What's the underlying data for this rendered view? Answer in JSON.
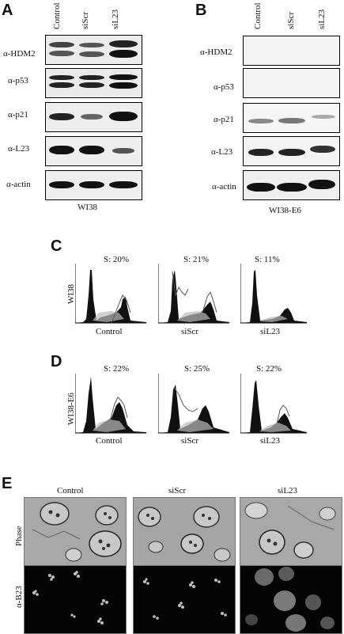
{
  "panel_a": {
    "letter": "A",
    "lanes": [
      "Control",
      "siScr",
      "siL23"
    ],
    "antibodies": [
      "α-HDM2",
      "α-p53",
      "α-p21",
      "α-L23",
      "α-actin"
    ],
    "cell_line": "WI38"
  },
  "panel_b": {
    "letter": "B",
    "lanes": [
      "Control",
      "siScr",
      "siL23"
    ],
    "antibodies": [
      "α-HDM2",
      "α-p53",
      "α-p21",
      "α-L23",
      "α-actin"
    ],
    "cell_line": "WI38-E6"
  },
  "panel_c": {
    "letter": "C",
    "row_label": "WI38",
    "s_phase": [
      "S: 20%",
      "S: 21%",
      "S: 11%"
    ],
    "conditions": [
      "Control",
      "siScr",
      "siL23"
    ]
  },
  "panel_d": {
    "letter": "D",
    "row_label": "WI38-E6",
    "s_phase": [
      "S: 22%",
      "S: 25%",
      "S: 22%"
    ],
    "conditions": [
      "Control",
      "siScr",
      "siL23"
    ]
  },
  "panel_e": {
    "letter": "E",
    "conditions": [
      "Control",
      "siScr",
      "siL23"
    ],
    "rows": [
      "Phase",
      "α-B23"
    ]
  }
}
